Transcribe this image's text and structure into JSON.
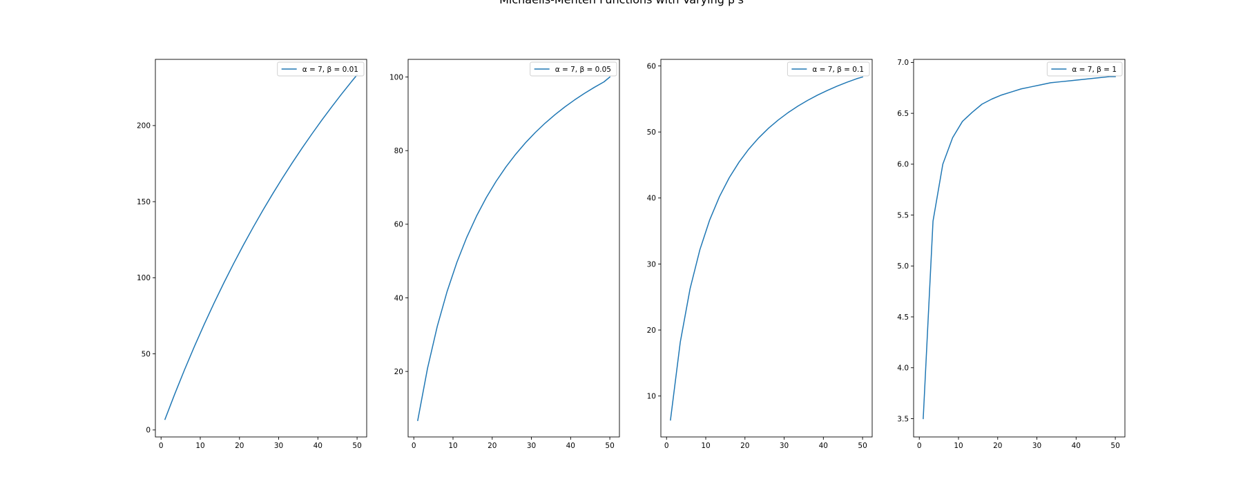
{
  "figure": {
    "suptitle": "Michaelis-Menten Functions with Varying β's"
  },
  "colors": {
    "line": "#1f77b4",
    "axes": "#000000",
    "legend_border": "#cccccc",
    "background": "#ffffff"
  },
  "chart_data": [
    {
      "type": "line",
      "title": "",
      "xlabel": "",
      "ylabel": "",
      "xlim": [
        -1.45,
        52.45
      ],
      "ylim": [
        -4.6,
        243.5
      ],
      "xticks": [
        0,
        10,
        20,
        30,
        40,
        50
      ],
      "yticks": [
        0,
        50,
        100,
        150,
        200
      ],
      "xtick_labels": [
        "0",
        "10",
        "20",
        "30",
        "40",
        "50"
      ],
      "ytick_labels": [
        "0",
        "50",
        "100",
        "150",
        "200"
      ],
      "legend_position": "upper-right",
      "series": [
        {
          "name": "α = 7, β = 0.01",
          "x": [
            1,
            3.5,
            6,
            8.5,
            11,
            13.5,
            16,
            18.5,
            21,
            23.5,
            26,
            28.5,
            31,
            33.5,
            36,
            38.5,
            41,
            43.5,
            46,
            48.5,
            50
          ],
          "y": [
            6.93,
            23.67,
            39.62,
            54.84,
            69.37,
            83.26,
            96.55,
            109.28,
            121.49,
            133.2,
            144.44,
            155.25,
            165.65,
            175.65,
            185.29,
            194.57,
            203.55,
            212.19,
            220.55,
            228.63,
            233.33
          ]
        }
      ]
    },
    {
      "type": "line",
      "title": "",
      "xlabel": "",
      "ylabel": "",
      "xlim": [
        -1.45,
        52.45
      ],
      "ylim": [
        2.2,
        104.8
      ],
      "xticks": [
        0,
        10,
        20,
        30,
        40,
        50
      ],
      "yticks": [
        20,
        40,
        60,
        80,
        100
      ],
      "xtick_labels": [
        "0",
        "10",
        "20",
        "30",
        "40",
        "50"
      ],
      "ytick_labels": [
        "20",
        "40",
        "60",
        "80",
        "100"
      ],
      "legend_position": "upper-right",
      "series": [
        {
          "name": "α = 7, β = 0.05",
          "x": [
            1,
            3.5,
            6,
            8.5,
            11,
            13.5,
            16,
            18.5,
            21,
            23.5,
            26,
            28.5,
            31,
            33.5,
            36,
            38.5,
            41,
            43.5,
            46,
            48.5,
            50
          ],
          "y": [
            6.67,
            20.85,
            32.31,
            41.76,
            49.68,
            56.43,
            62.22,
            67.26,
            71.67,
            75.57,
            79.04,
            82.15,
            84.94,
            87.47,
            89.76,
            91.86,
            93.77,
            95.54,
            97.17,
            98.68,
            100.0
          ]
        }
      ]
    },
    {
      "type": "line",
      "title": "",
      "xlabel": "",
      "ylabel": "",
      "xlim": [
        -1.45,
        52.45
      ],
      "ylim": [
        3.8,
        61.0
      ],
      "xticks": [
        0,
        10,
        20,
        30,
        40,
        50
      ],
      "yticks": [
        10,
        20,
        30,
        40,
        50,
        60
      ],
      "xtick_labels": [
        "0",
        "10",
        "20",
        "30",
        "40",
        "50"
      ],
      "ytick_labels": [
        "10",
        "20",
        "30",
        "40",
        "50",
        "60"
      ],
      "legend_position": "upper-right",
      "series": [
        {
          "name": "α = 7, β = 0.1",
          "x": [
            1,
            3.5,
            6,
            8.5,
            11,
            13.5,
            16,
            18.5,
            21,
            23.5,
            26,
            28.5,
            31,
            33.5,
            36,
            38.5,
            41,
            43.5,
            46,
            48.5,
            50
          ],
          "y": [
            6.36,
            18.15,
            26.25,
            32.16,
            36.67,
            40.21,
            43.08,
            45.44,
            47.42,
            49.1,
            50.56,
            51.82,
            52.93,
            53.92,
            54.79,
            55.58,
            56.29,
            56.94,
            57.53,
            58.07,
            58.33
          ]
        }
      ]
    },
    {
      "type": "line",
      "title": "",
      "xlabel": "",
      "ylabel": "",
      "xlim": [
        -1.45,
        52.45
      ],
      "ylim": [
        3.32,
        7.03
      ],
      "xticks": [
        0,
        10,
        20,
        30,
        40,
        50
      ],
      "yticks": [
        3.5,
        4.0,
        4.5,
        5.0,
        5.5,
        6.0,
        6.5,
        7.0
      ],
      "xtick_labels": [
        "0",
        "10",
        "20",
        "30",
        "40",
        "50"
      ],
      "ytick_labels": [
        "3.5",
        "4.0",
        "4.5",
        "5.0",
        "5.5",
        "6.0",
        "6.5",
        "7.0"
      ],
      "legend_position": "upper-right",
      "series": [
        {
          "name": "α = 7, β = 1",
          "x": [
            1,
            3.5,
            6,
            8.5,
            11,
            13.5,
            16,
            18.5,
            21,
            23.5,
            26,
            28.5,
            31,
            33.5,
            36,
            38.5,
            41,
            43.5,
            46,
            48.5,
            50
          ],
          "y": [
            3.5,
            5.44,
            6.0,
            6.26,
            6.42,
            6.51,
            6.59,
            6.64,
            6.68,
            6.71,
            6.74,
            6.76,
            6.78,
            6.8,
            6.81,
            6.82,
            6.83,
            6.84,
            6.85,
            6.86,
            6.86
          ]
        }
      ]
    }
  ]
}
